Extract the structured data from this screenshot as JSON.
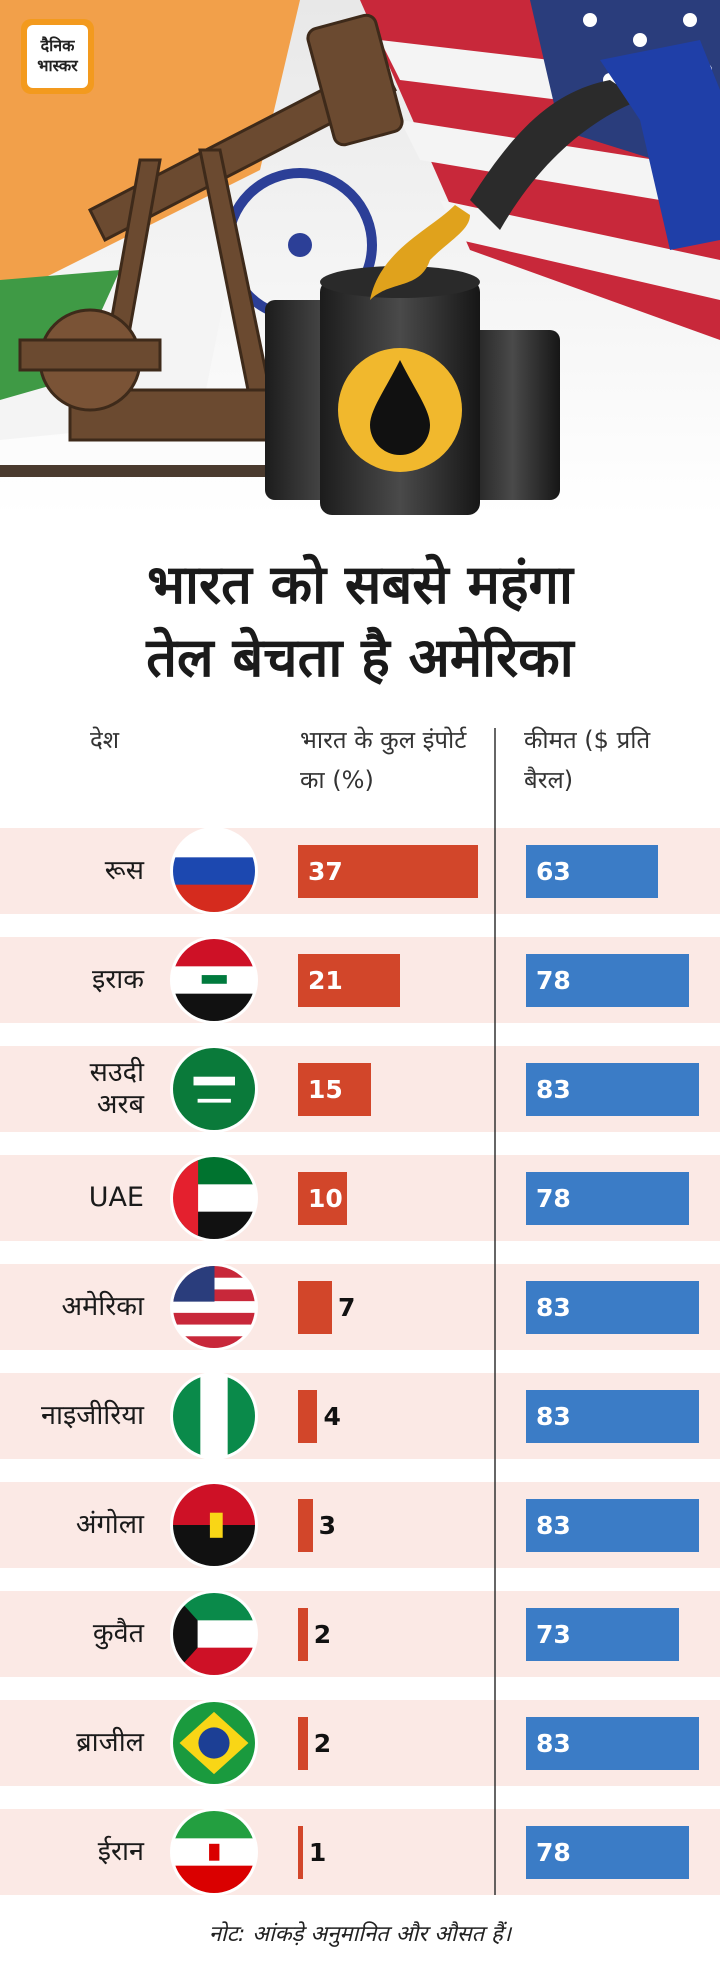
{
  "logo": [
    "दैनिक",
    "भास्कर"
  ],
  "chart_data": {
    "type": "bar",
    "title": [
      "भारत को सबसे महंगा",
      "तेल बेचता है अमेरिका"
    ],
    "category_header": "देश",
    "categories": [
      "रूस",
      "इराक",
      "सउदी अरब",
      "UAE",
      "अमेरिका",
      "नाइजीरिया",
      "अंगोला",
      "कुवैत",
      "ब्राजील",
      "ईरान"
    ],
    "series": [
      {
        "name": "भारत के कुल इंपोर्ट का (%)",
        "color": "#d2462a",
        "values": [
          37,
          21,
          15,
          10,
          7,
          4,
          3,
          2,
          2,
          1
        ]
      },
      {
        "name": "कीमत ($ प्रति बैरल)",
        "color": "#3b7cc6",
        "values": [
          63,
          78,
          83,
          78,
          83,
          83,
          83,
          73,
          83,
          78
        ]
      }
    ],
    "note": "नोट: आंकड़े अनुमानित और औसत हैं।"
  }
}
